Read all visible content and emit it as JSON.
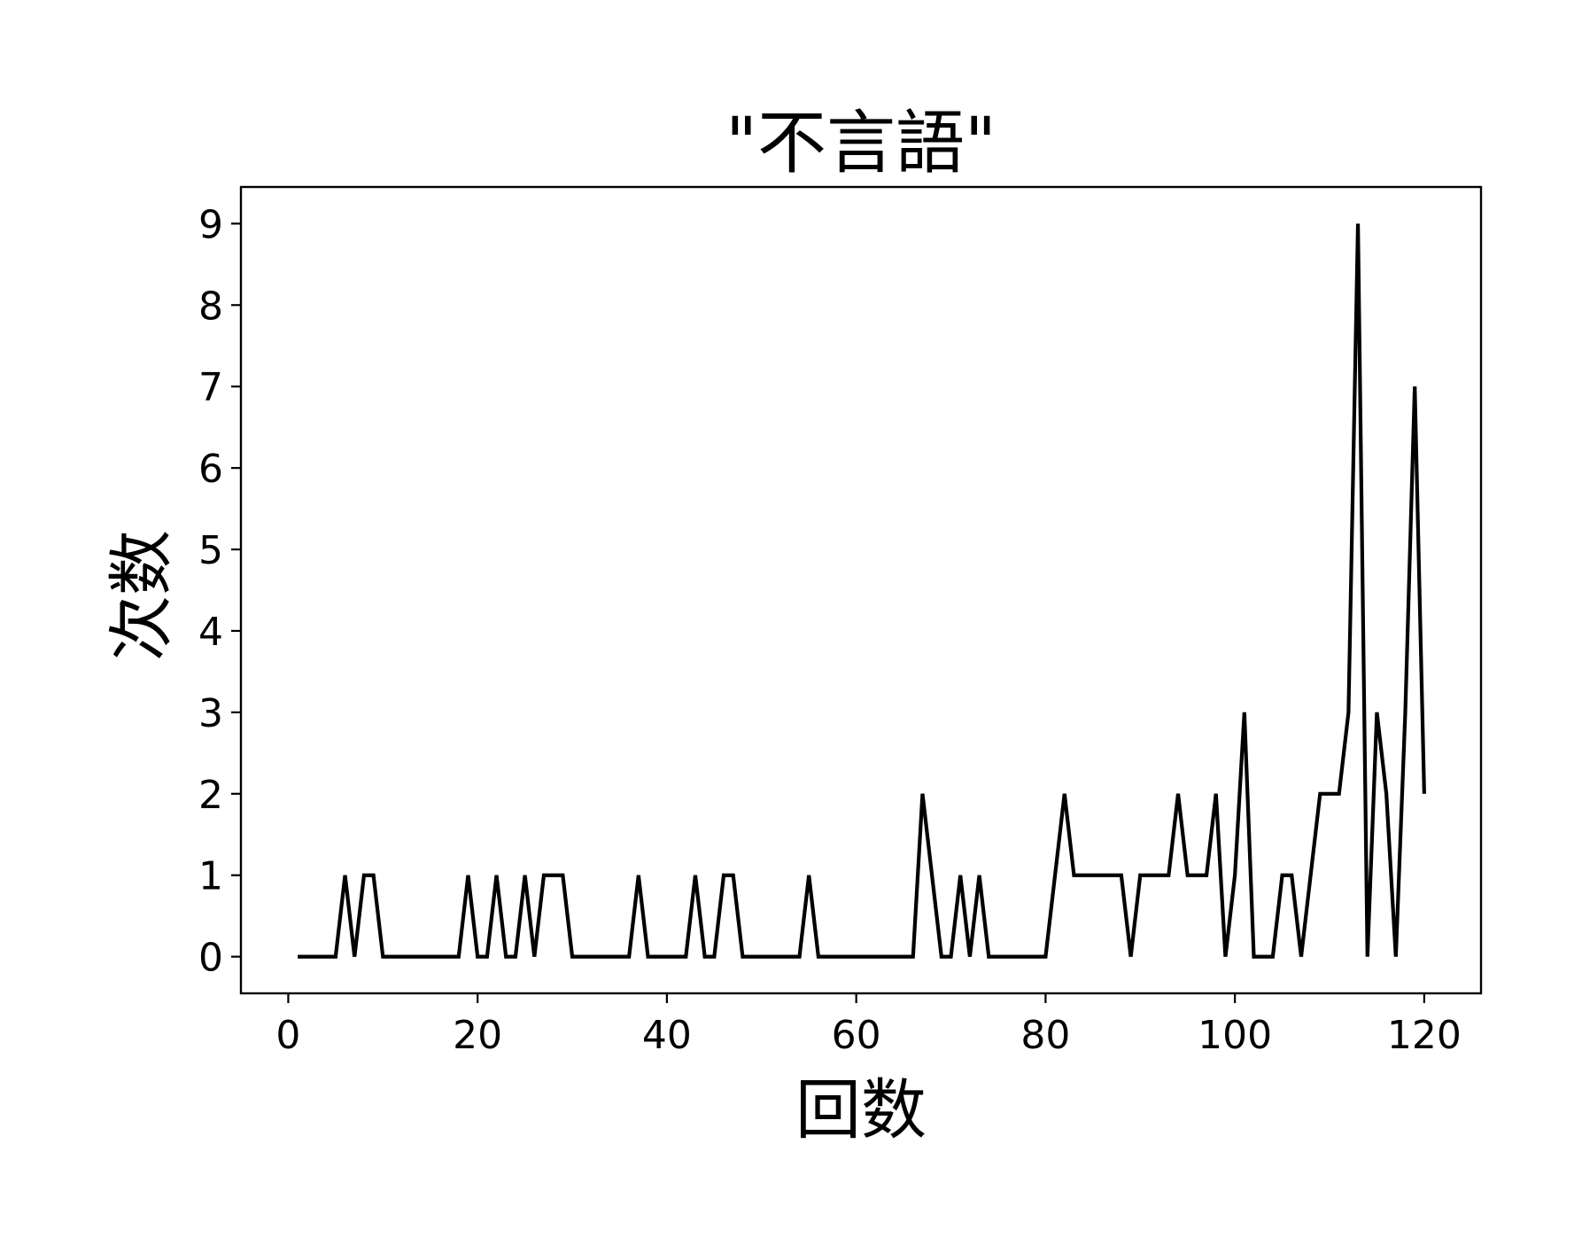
{
  "chart_data": {
    "type": "line",
    "title": "\"不言語\"",
    "xlabel": "回数",
    "ylabel": "次数",
    "xlim": [
      -5,
      126
    ],
    "ylim": [
      -0.45,
      9.45
    ],
    "xticks": [
      0,
      20,
      40,
      60,
      80,
      100,
      120
    ],
    "yticks": [
      0,
      1,
      2,
      3,
      4,
      5,
      6,
      7,
      8,
      9
    ],
    "grid": false,
    "series": [
      {
        "color": "#000000",
        "x": [
          1,
          2,
          3,
          4,
          5,
          6,
          7,
          8,
          9,
          10,
          11,
          12,
          13,
          14,
          15,
          16,
          17,
          18,
          19,
          20,
          21,
          22,
          23,
          24,
          25,
          26,
          27,
          28,
          29,
          30,
          31,
          32,
          33,
          34,
          35,
          36,
          37,
          38,
          39,
          40,
          41,
          42,
          43,
          44,
          45,
          46,
          47,
          48,
          49,
          50,
          51,
          52,
          53,
          54,
          55,
          56,
          57,
          58,
          59,
          60,
          61,
          62,
          63,
          64,
          65,
          66,
          67,
          68,
          69,
          70,
          71,
          72,
          73,
          74,
          75,
          76,
          77,
          78,
          79,
          80,
          81,
          82,
          83,
          84,
          85,
          86,
          87,
          88,
          89,
          90,
          91,
          92,
          93,
          94,
          95,
          96,
          97,
          98,
          99,
          100,
          101,
          102,
          103,
          104,
          105,
          106,
          107,
          108,
          109,
          110,
          111,
          112,
          113,
          114,
          115,
          116,
          117,
          118,
          119,
          120
        ],
        "y": [
          0,
          0,
          0,
          0,
          0,
          1,
          0,
          1,
          1,
          0,
          0,
          0,
          0,
          0,
          0,
          0,
          0,
          0,
          1,
          0,
          0,
          1,
          0,
          0,
          1,
          0,
          1,
          1,
          1,
          0,
          0,
          0,
          0,
          0,
          0,
          0,
          1,
          0,
          0,
          0,
          0,
          0,
          1,
          0,
          0,
          1,
          1,
          0,
          0,
          0,
          0,
          0,
          0,
          0,
          1,
          0,
          0,
          0,
          0,
          0,
          0,
          0,
          0,
          0,
          0,
          0,
          2,
          1,
          0,
          0,
          1,
          0,
          1,
          0,
          0,
          0,
          0,
          0,
          0,
          0,
          1,
          2,
          1,
          1,
          1,
          1,
          1,
          1,
          0,
          1,
          1,
          1,
          1,
          2,
          1,
          1,
          1,
          2,
          0,
          1,
          3,
          0,
          0,
          0,
          1,
          1,
          0,
          1,
          2,
          2,
          2,
          3,
          9,
          0,
          3,
          2,
          0,
          3,
          7,
          2
        ]
      }
    ]
  }
}
